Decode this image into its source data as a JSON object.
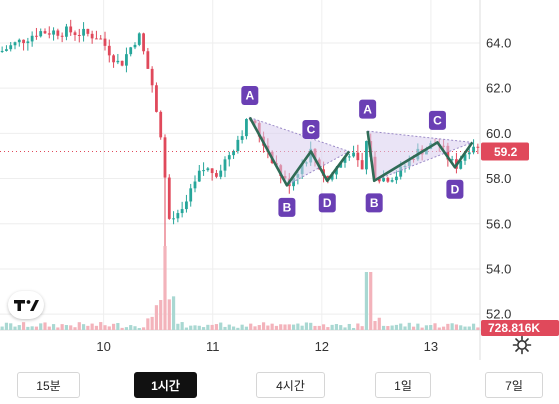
{
  "chart_data": {
    "type": "candlestick",
    "instrument_last_price": "59.2",
    "last_volume": "728.816K",
    "y_ticks": [
      "64.0",
      "62.0",
      "60.0",
      "58.0",
      "56.0",
      "54.0",
      "52.0"
    ],
    "y_tick_values": [
      64,
      62,
      60,
      58,
      56,
      54,
      52
    ],
    "ylim": [
      51.3,
      65.9
    ],
    "x_ticks": [
      "10",
      "11",
      "12",
      "13"
    ],
    "x_tick_values": [
      10,
      11,
      12,
      13
    ],
    "xlim": [
      9.05,
      13.45
    ],
    "colors": {
      "up": "#26a69a",
      "down": "#e0495b",
      "volume_up": "#a9d8d2",
      "volume_down": "#f3b3bb",
      "pattern_fill": "#d8cdee",
      "pattern_line": "#2f6b56",
      "label_bg": "#6a3fb4",
      "price_tag": "#e0495b"
    },
    "patterns": [
      {
        "points": [
          {
            "label": "A",
            "x": 11.34,
            "y": 60.7
          },
          {
            "label": "B",
            "x": 11.68,
            "y": 57.7
          },
          {
            "label": "C",
            "x": 11.9,
            "y": 59.2
          },
          {
            "label": "D",
            "x": 12.05,
            "y": 57.9
          }
        ],
        "end": {
          "x": 12.25,
          "y": 59.2
        }
      },
      {
        "points": [
          {
            "label": "A",
            "x": 12.42,
            "y": 60.1
          },
          {
            "label": "B",
            "x": 12.48,
            "y": 57.9
          },
          {
            "label": "C",
            "x": 13.06,
            "y": 59.6
          },
          {
            "label": "D",
            "x": 13.22,
            "y": 58.5
          }
        ],
        "end": {
          "x": 13.38,
          "y": 59.6
        }
      }
    ]
  },
  "ui": {
    "timeframes": [
      "15분",
      "1시간",
      "4시간",
      "1일",
      "7일"
    ],
    "active_timeframe": "1시간",
    "logo_text": "TV"
  }
}
